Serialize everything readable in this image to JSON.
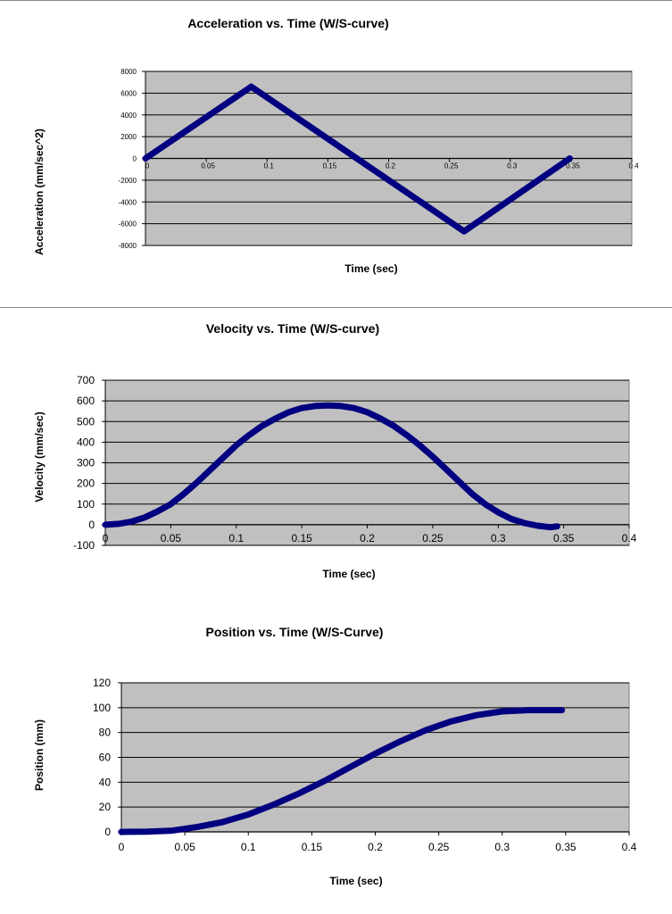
{
  "chart_data": [
    {
      "type": "line",
      "title": "Acceleration vs. Time (W/S-curve)",
      "xlabel": "Time (sec)",
      "ylabel": "Acceleration (mm/sec^2)",
      "xlim": [
        0,
        0.4
      ],
      "ylim": [
        -8000,
        8000
      ],
      "x_ticks": [
        "0",
        "0.05",
        "0.1",
        "0.15",
        "0.2",
        "0.25",
        "0.3",
        "0.35",
        "0.4"
      ],
      "y_ticks": [
        "8000",
        "6000",
        "4000",
        "2000",
        "0",
        "-2000",
        "-4000",
        "-6000",
        "-8000"
      ],
      "grid": true,
      "plot_background": "#c0c0c0",
      "series_color": "#000080",
      "series": [
        {
          "x": [
            0,
            0.087,
            0.262,
            0.349
          ],
          "y": [
            0,
            6600,
            -6700,
            0
          ]
        }
      ]
    },
    {
      "type": "line",
      "title": "Velocity vs. Time (W/S-curve)",
      "xlabel": "Time (sec)",
      "ylabel": "Velocity (mm/sec)",
      "xlim": [
        0,
        0.4
      ],
      "ylim": [
        -100,
        700
      ],
      "x_ticks": [
        "0",
        "0.05",
        "0.1",
        "0.15",
        "0.2",
        "0.25",
        "0.3",
        "0.35",
        "0.4"
      ],
      "y_ticks": [
        "700",
        "600",
        "500",
        "400",
        "300",
        "200",
        "100",
        "0",
        "-100"
      ],
      "grid": true,
      "plot_background": "#c0c0c0",
      "series_color": "#000080",
      "series": [
        {
          "x": [
            0,
            0.01,
            0.02,
            0.03,
            0.04,
            0.05,
            0.06,
            0.07,
            0.08,
            0.09,
            0.1,
            0.11,
            0.12,
            0.13,
            0.14,
            0.15,
            0.16,
            0.17,
            0.18,
            0.19,
            0.2,
            0.21,
            0.22,
            0.23,
            0.24,
            0.25,
            0.26,
            0.27,
            0.28,
            0.29,
            0.3,
            0.31,
            0.32,
            0.33,
            0.34,
            0.345
          ],
          "y": [
            0,
            4,
            15,
            35,
            65,
            100,
            150,
            205,
            265,
            325,
            385,
            435,
            480,
            515,
            545,
            565,
            575,
            578,
            575,
            565,
            545,
            515,
            480,
            435,
            385,
            330,
            270,
            210,
            150,
            100,
            60,
            28,
            8,
            -5,
            -12,
            -8
          ]
        }
      ]
    },
    {
      "type": "line",
      "title": "Position vs. Time (W/S-Curve)",
      "xlabel": "Time (sec)",
      "ylabel": "Position (mm)",
      "xlim": [
        0,
        0.4
      ],
      "ylim": [
        0,
        120
      ],
      "x_ticks": [
        "0",
        "0.05",
        "0.1",
        "0.15",
        "0.2",
        "0.25",
        "0.3",
        "0.35",
        "0.4"
      ],
      "y_ticks": [
        "120",
        "100",
        "80",
        "60",
        "40",
        "20",
        "0"
      ],
      "grid": true,
      "plot_background": "#c0c0c0",
      "series_color": "#000080",
      "series": [
        {
          "x": [
            0,
            0.02,
            0.04,
            0.06,
            0.08,
            0.1,
            0.12,
            0.14,
            0.16,
            0.18,
            0.2,
            0.22,
            0.24,
            0.26,
            0.28,
            0.3,
            0.32,
            0.34,
            0.347
          ],
          "y": [
            0,
            0.2,
            1,
            4,
            8,
            14,
            22,
            31,
            41,
            52,
            63,
            73,
            82,
            89,
            94,
            97,
            98,
            98,
            98
          ]
        }
      ]
    }
  ]
}
